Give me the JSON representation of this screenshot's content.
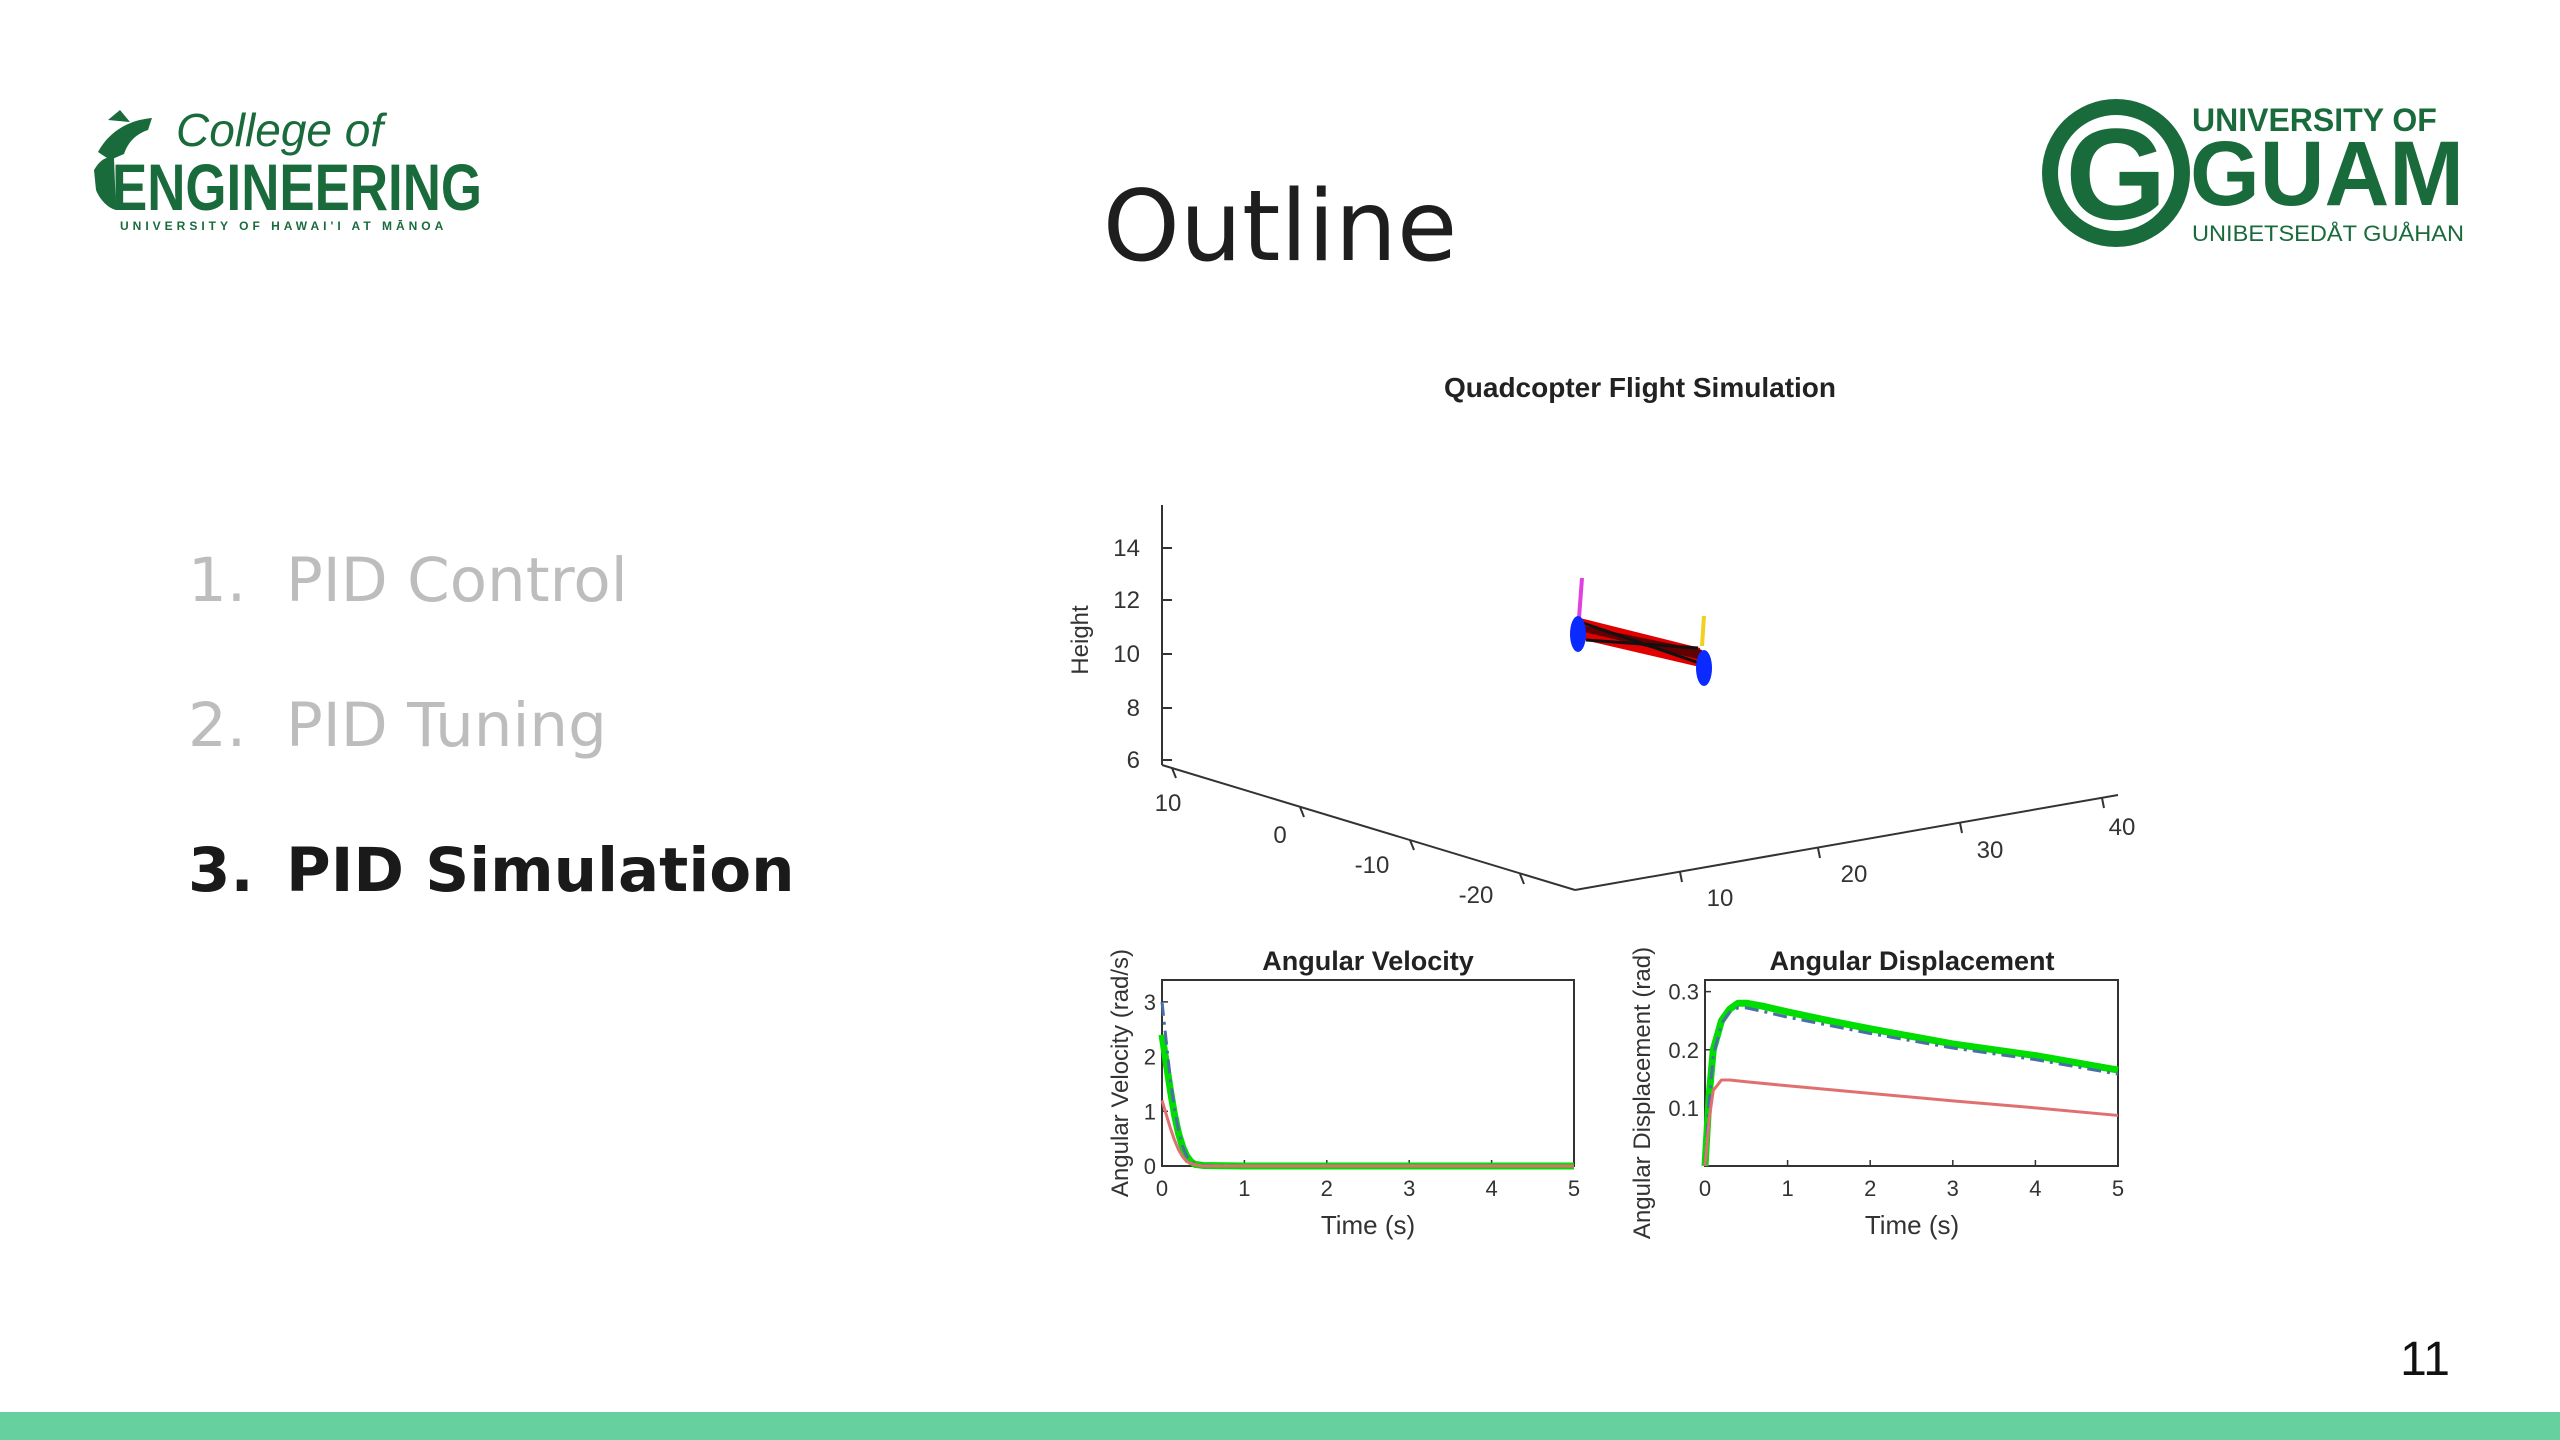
{
  "slide": {
    "title": "Outline",
    "page_number": "11",
    "logo_left": {
      "line1": "College of",
      "line2": "ENGINEERING",
      "line3": "UNIVERSITY OF HAWAI'I AT MĀNOA"
    },
    "logo_right": {
      "letter": "G",
      "line1": "UNIVERSITY OF",
      "line2": "GUAM",
      "line3": "UNIBETSEDÅT GUÅHAN"
    },
    "outline_items": [
      {
        "number": "1.",
        "label": "PID Control",
        "active": false
      },
      {
        "number": "2.",
        "label": "PID Tuning",
        "active": false
      },
      {
        "number": "3.",
        "label": "PID Simulation",
        "active": true
      }
    ]
  },
  "colors": {
    "brand_green": "#1a6b3c",
    "bottom_bar": "#66d19e",
    "muted_text": "#bdbdbd"
  },
  "figure": {
    "title": "Quadcopter Flight Simulation",
    "plot3d": {
      "zlabel": "Height",
      "z_ticks": [
        "14",
        "12",
        "10",
        "8",
        "6"
      ],
      "y_ticks": [
        "10",
        "0",
        "-10",
        "-20"
      ],
      "x_ticks": [
        "10",
        "20",
        "30",
        "40"
      ]
    }
  },
  "chart_data": [
    {
      "type": "line",
      "title": "Angular Velocity",
      "xlabel": "Time (s)",
      "ylabel": "Angular Velocity (rad/s)",
      "xlim": [
        0,
        5
      ],
      "ylim": [
        0,
        3.4
      ],
      "x_ticks": [
        "0",
        "1",
        "2",
        "3",
        "4",
        "5"
      ],
      "y_ticks": [
        "0",
        "1",
        "2",
        "3"
      ],
      "series": [
        {
          "color": "#00dd00",
          "style": "solid",
          "x": [
            0,
            0.05,
            0.1,
            0.15,
            0.2,
            0.25,
            0.3,
            0.35,
            0.4,
            0.5,
            1,
            2,
            3,
            4,
            5
          ],
          "y": [
            2.4,
            1.9,
            1.4,
            0.95,
            0.6,
            0.35,
            0.18,
            0.08,
            0.03,
            0.01,
            0,
            0,
            0,
            0,
            0
          ]
        },
        {
          "color": "#4a6fa5",
          "style": "dashdot",
          "x": [
            0,
            0.05,
            0.1,
            0.15,
            0.2,
            0.25,
            0.3,
            0.35,
            0.4,
            0.5,
            1,
            2,
            3,
            4,
            5
          ],
          "y": [
            3.0,
            2.3,
            1.6,
            1.05,
            0.65,
            0.36,
            0.18,
            0.08,
            0.03,
            0.01,
            0,
            0,
            0,
            0,
            0
          ]
        },
        {
          "color": "#e07070",
          "style": "solid",
          "x": [
            0,
            0.05,
            0.1,
            0.15,
            0.2,
            0.25,
            0.3,
            0.4,
            0.5,
            1,
            2,
            3,
            4,
            5
          ],
          "y": [
            1.2,
            0.95,
            0.7,
            0.48,
            0.3,
            0.17,
            0.08,
            0.02,
            0.0,
            0,
            0,
            0,
            0,
            0
          ]
        }
      ]
    },
    {
      "type": "line",
      "title": "Angular Displacement",
      "xlabel": "Time (s)",
      "ylabel": "Angular Displacement (rad)",
      "xlim": [
        0,
        5
      ],
      "ylim": [
        0,
        0.32
      ],
      "x_ticks": [
        "0",
        "1",
        "2",
        "3",
        "4",
        "5"
      ],
      "y_ticks": [
        "0.1",
        "0.2",
        "0.3"
      ],
      "series": [
        {
          "color": "#00dd00",
          "style": "solid",
          "x": [
            0,
            0.05,
            0.1,
            0.2,
            0.3,
            0.4,
            0.5,
            0.7,
            1,
            1.5,
            2,
            3,
            4,
            5
          ],
          "y": [
            0,
            0.12,
            0.2,
            0.25,
            0.27,
            0.28,
            0.28,
            0.275,
            0.265,
            0.25,
            0.236,
            0.21,
            0.19,
            0.165
          ]
        },
        {
          "color": "#4a6fa5",
          "style": "dashdot",
          "x": [
            0,
            0.05,
            0.1,
            0.2,
            0.3,
            0.4,
            0.5,
            0.7,
            1,
            1.5,
            2,
            3,
            4,
            5
          ],
          "y": [
            0,
            0.11,
            0.19,
            0.245,
            0.265,
            0.272,
            0.272,
            0.266,
            0.256,
            0.242,
            0.228,
            0.203,
            0.183,
            0.158
          ]
        },
        {
          "color": "#e07070",
          "style": "solid",
          "x": [
            0,
            0.05,
            0.1,
            0.2,
            0.3,
            0.5,
            1,
            2,
            3,
            4,
            5
          ],
          "y": [
            0,
            0.08,
            0.13,
            0.148,
            0.148,
            0.145,
            0.138,
            0.125,
            0.112,
            0.1,
            0.087
          ]
        }
      ]
    }
  ]
}
